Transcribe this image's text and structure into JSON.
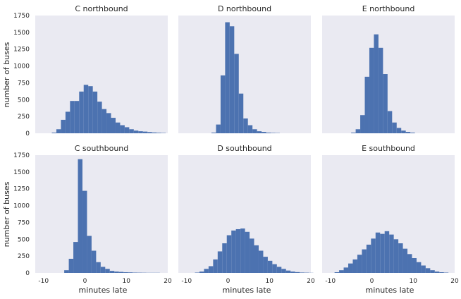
{
  "chart_data": {
    "type": "bar",
    "layout": "2x3 grid of histograms",
    "shared_x_label": "minutes late",
    "shared_y_label": "number of buses",
    "xlim": [
      -12,
      20
    ],
    "ylim": [
      0,
      1750
    ],
    "x_ticks": [
      "-10",
      "0",
      "10",
      "20"
    ],
    "y_ticks": [
      "0",
      "250",
      "500",
      "750",
      "1000",
      "1250",
      "1500",
      "1750"
    ],
    "bin_width": 1.1,
    "bar_color": "#4c72b0",
    "background_color": "#eaeaf2",
    "panels": [
      {
        "title": "C northbound",
        "bins_start": -8,
        "counts": [
          10,
          60,
          200,
          320,
          480,
          480,
          620,
          720,
          700,
          620,
          470,
          360,
          300,
          230,
          160,
          120,
          90,
          60,
          40,
          30,
          25,
          18,
          12,
          8,
          5
        ]
      },
      {
        "title": "D northbound",
        "bins_start": -4,
        "counts": [
          10,
          130,
          860,
          1650,
          1590,
          1180,
          590,
          220,
          120,
          60,
          30,
          20,
          10,
          6,
          4
        ]
      },
      {
        "title": "E northbound",
        "bins_start": -5,
        "counts": [
          10,
          60,
          270,
          840,
          1270,
          1470,
          1270,
          880,
          330,
          160,
          80,
          40,
          20,
          10
        ]
      },
      {
        "title": "C southbound",
        "bins_start": -5,
        "counts": [
          40,
          210,
          460,
          1690,
          1220,
          550,
          330,
          160,
          90,
          60,
          30,
          20,
          15,
          10,
          8,
          5,
          4,
          3,
          2,
          2,
          2
        ]
      },
      {
        "title": "D southbound",
        "bins_start": -8,
        "counts": [
          5,
          20,
          60,
          100,
          200,
          320,
          440,
          560,
          630,
          650,
          660,
          610,
          510,
          410,
          330,
          240,
          180,
          130,
          90,
          60,
          35,
          20,
          12,
          6,
          4,
          2
        ]
      },
      {
        "title": "E southbound",
        "bins_start": -9,
        "counts": [
          10,
          40,
          80,
          140,
          200,
          270,
          350,
          420,
          510,
          600,
          580,
          620,
          570,
          500,
          440,
          360,
          280,
          220,
          160,
          110,
          70,
          40,
          20,
          10,
          5
        ]
      }
    ]
  }
}
